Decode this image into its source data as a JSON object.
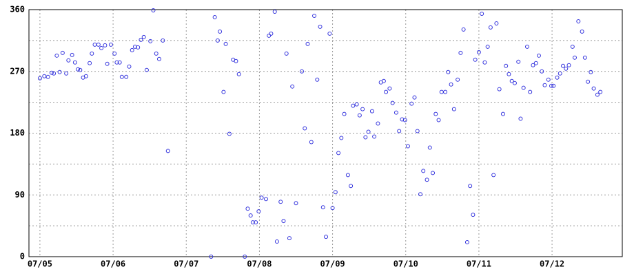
{
  "chart_data": {
    "type": "scatter",
    "color": "#3333dd",
    "x": [
      5.0,
      5.06,
      5.11,
      5.16,
      5.19,
      5.23,
      5.27,
      5.31,
      5.36,
      5.39,
      5.44,
      5.48,
      5.52,
      5.55,
      5.59,
      5.63,
      5.68,
      5.71,
      5.75,
      5.8,
      5.84,
      5.89,
      5.92,
      5.97,
      6.02,
      6.05,
      6.09,
      6.12,
      6.18,
      6.22,
      6.26,
      6.3,
      6.34,
      6.38,
      6.42,
      6.46,
      6.51,
      6.55,
      6.59,
      6.63,
      6.68,
      6.75,
      7.34,
      7.39,
      7.43,
      7.46,
      7.51,
      7.54,
      7.59,
      7.64,
      7.68,
      7.72,
      7.8,
      7.84,
      7.88,
      7.91,
      7.95,
      7.99,
      8.03,
      8.09,
      8.13,
      8.16,
      8.21,
      8.24,
      8.29,
      8.33,
      8.37,
      8.41,
      8.45,
      8.5,
      8.58,
      8.62,
      8.66,
      8.71,
      8.75,
      8.79,
      8.83,
      8.87,
      8.91,
      8.96,
      9.0,
      9.04,
      9.08,
      9.12,
      9.16,
      9.21,
      9.25,
      9.28,
      9.33,
      9.37,
      9.41,
      9.45,
      9.49,
      9.54,
      9.57,
      9.62,
      9.66,
      9.7,
      9.73,
      9.78,
      9.82,
      9.87,
      9.91,
      9.95,
      9.99,
      10.03,
      10.08,
      10.12,
      10.16,
      10.2,
      10.24,
      10.29,
      10.33,
      10.37,
      10.41,
      10.45,
      10.49,
      10.54,
      10.58,
      10.62,
      10.66,
      10.71,
      10.75,
      10.79,
      10.84,
      10.88,
      10.92,
      10.95,
      11.0,
      11.04,
      11.08,
      11.12,
      11.16,
      11.2,
      11.24,
      11.28,
      11.33,
      11.37,
      11.41,
      11.45,
      11.49,
      11.54,
      11.57,
      11.61,
      11.66,
      11.7,
      11.74,
      11.78,
      11.82,
      11.86,
      11.9,
      11.95,
      11.99,
      12.02,
      12.07,
      12.11,
      12.15,
      12.19,
      12.23,
      12.28,
      12.31,
      12.36,
      12.41,
      12.45,
      12.49,
      12.53,
      12.57,
      12.62,
      12.66
    ],
    "values": [
      260,
      263,
      262,
      268,
      267,
      293,
      269,
      297,
      267,
      286,
      294,
      283,
      273,
      272,
      261,
      263,
      282,
      296,
      309,
      309,
      304,
      308,
      281,
      309,
      296,
      283,
      283,
      262,
      262,
      277,
      301,
      306,
      305,
      316,
      320,
      272,
      314,
      359,
      296,
      288,
      315,
      154,
      0,
      349,
      315,
      328,
      240,
      310,
      179,
      287,
      285,
      266,
      0,
      70,
      60,
      50,
      50,
      66,
      86,
      84,
      322,
      325,
      357,
      22,
      80,
      52,
      296,
      27,
      248,
      78,
      270,
      187,
      310,
      167,
      351,
      258,
      335,
      72,
      29,
      325,
      71,
      94,
      151,
      173,
      208,
      119,
      103,
      220,
      222,
      206,
      215,
      174,
      182,
      212,
      175,
      194,
      254,
      256,
      240,
      245,
      224,
      210,
      183,
      200,
      199,
      161,
      223,
      232,
      183,
      91,
      125,
      112,
      159,
      122,
      208,
      199,
      240,
      240,
      269,
      251,
      215,
      258,
      297,
      331,
      21,
      103,
      61,
      287,
      298,
      354,
      283,
      306,
      334,
      119,
      340,
      244,
      208,
      278,
      266,
      256,
      253,
      284,
      201,
      246,
      306,
      240,
      279,
      282,
      293,
      270,
      250,
      258,
      249,
      249,
      261,
      267,
      278,
      274,
      279,
      306,
      290,
      343,
      328,
      290,
      255,
      269,
      245,
      236,
      240
    ],
    "xlim": [
      4.85,
      12.96
    ],
    "ylim": [
      0,
      360
    ],
    "xticks": [
      {
        "value": 5,
        "label": "07/05"
      },
      {
        "value": 6,
        "label": "07/06"
      },
      {
        "value": 7,
        "label": "07/07"
      },
      {
        "value": 8,
        "label": "07/08"
      },
      {
        "value": 9,
        "label": "07/09"
      },
      {
        "value": 10,
        "label": "07/10"
      },
      {
        "value": 11,
        "label": "07/11"
      },
      {
        "value": 12,
        "label": "07/12"
      }
    ],
    "yticks": [
      0,
      90,
      180,
      270,
      360
    ],
    "y_minor_gridlines": [
      45,
      135,
      225,
      315
    ],
    "grid": true
  }
}
